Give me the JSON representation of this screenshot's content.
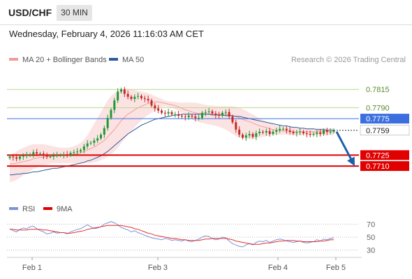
{
  "header": {
    "symbol": "USD/CHF",
    "timeframe": "30 MIN",
    "datetime": "Wednesday, February 4, 2026 11:16:03 AM CET"
  },
  "legend": {
    "ma20": "MA 20 + Bollinger Bands",
    "ma50": "MA 50",
    "credit": "Research © 2026 Trading Central",
    "rsi": "RSI",
    "rsi_ma": "9MA"
  },
  "colors": {
    "ma20_band": "#f7a8a8",
    "ma50": "#2d5c9e",
    "resistance": "#b9d98e",
    "pivot": "#3b6fe0",
    "support": "#e00000",
    "arrow": "#1f5fa8",
    "rsi": "#7b93d6",
    "rsi_ma": "#e03030"
  },
  "chart_data": [
    {
      "type": "line",
      "title": "USD/CHF 30 MIN",
      "x_ticks": [
        "Feb 1",
        "Feb 3",
        "Feb 4",
        "Feb 5"
      ],
      "price_levels": [
        {
          "value": 0.7815,
          "label": "0.7815",
          "kind": "resistance"
        },
        {
          "value": 0.779,
          "label": "0.7790",
          "kind": "resistance"
        },
        {
          "value": 0.7775,
          "label": "0.7775",
          "kind": "pivot"
        },
        {
          "value": 0.7759,
          "label": "0.7759",
          "kind": "last_price"
        },
        {
          "value": 0.7725,
          "label": "0.7725",
          "kind": "support"
        },
        {
          "value": 0.771,
          "label": "0.7710",
          "kind": "support"
        }
      ],
      "ylim": [
        0.7668,
        0.7842
      ],
      "scenario_arrow": {
        "from": 0.7759,
        "to": 0.771,
        "direction": "down"
      },
      "series": [
        {
          "name": "USD/CHF",
          "values": [
            0.7723,
            0.7722,
            0.772,
            0.7723,
            0.7724,
            0.7725,
            0.7726,
            0.7729,
            0.7727,
            0.7727,
            0.7724,
            0.7723,
            0.7723,
            0.7725,
            0.7725,
            0.7725,
            0.7726,
            0.7725,
            0.7728,
            0.7729,
            0.773,
            0.7732,
            0.7737,
            0.7741,
            0.7742,
            0.7745,
            0.7748,
            0.7753,
            0.7762,
            0.7776,
            0.7787,
            0.78,
            0.7812,
            0.7815,
            0.7809,
            0.7805,
            0.7802,
            0.7805,
            0.7806,
            0.7803,
            0.7802,
            0.78,
            0.7793,
            0.7789,
            0.7786,
            0.7783,
            0.7782,
            0.7784,
            0.7781,
            0.7781,
            0.7779,
            0.7778,
            0.7777,
            0.7779,
            0.7778,
            0.7776,
            0.7776,
            0.7783,
            0.7784,
            0.7785,
            0.7782,
            0.778,
            0.7779,
            0.7783,
            0.7784,
            0.7778,
            0.777,
            0.776,
            0.7753,
            0.7749,
            0.7752,
            0.7754,
            0.775,
            0.7755,
            0.7757,
            0.7756,
            0.7758,
            0.7754,
            0.7757,
            0.7759,
            0.7761,
            0.7761,
            0.7759,
            0.7757,
            0.7755,
            0.7756,
            0.7757,
            0.7755,
            0.7754,
            0.7753,
            0.7754,
            0.7756,
            0.7754,
            0.7759,
            0.7757,
            0.7757,
            0.7759
          ]
        },
        {
          "name": "MA 20",
          "values": [
            0.7713,
            0.7713,
            0.7714,
            0.7715,
            0.7716,
            0.7717,
            0.7718,
            0.772,
            0.7721,
            0.7722,
            0.7722,
            0.7723,
            0.7723,
            0.7724,
            0.7724,
            0.7724,
            0.7725,
            0.7725,
            0.7726,
            0.7726,
            0.7727,
            0.7728,
            0.773,
            0.7732,
            0.7734,
            0.7736,
            0.7739,
            0.7742,
            0.7745,
            0.775,
            0.7755,
            0.776,
            0.7766,
            0.7772,
            0.7777,
            0.7781,
            0.7784,
            0.7787,
            0.779,
            0.7792,
            0.7794,
            0.7796,
            0.7797,
            0.7798,
            0.7798,
            0.7797,
            0.7796,
            0.7795,
            0.7794,
            0.7793,
            0.7791,
            0.7789,
            0.7787,
            0.7786,
            0.7784,
            0.7783,
            0.7782,
            0.7782,
            0.7782,
            0.7781,
            0.7781,
            0.7781,
            0.7781,
            0.7781,
            0.7781,
            0.778,
            0.7779,
            0.7778,
            0.7776,
            0.7774,
            0.7772,
            0.7771,
            0.7769,
            0.7767,
            0.7765,
            0.7764,
            0.7763,
            0.7761,
            0.776,
            0.7759,
            0.7759,
            0.7758,
            0.7758,
            0.7757,
            0.7757,
            0.7757,
            0.7757,
            0.7757,
            0.7757,
            0.7757,
            0.7757,
            0.7757,
            0.7757,
            0.7757,
            0.7757,
            0.7757,
            0.7757
          ]
        },
        {
          "name": "MA 50",
          "values": [
            0.7698,
            0.7698,
            0.7699,
            0.7699,
            0.77,
            0.77,
            0.7701,
            0.7702,
            0.7702,
            0.7703,
            0.7704,
            0.7705,
            0.7706,
            0.7707,
            0.7707,
            0.7708,
            0.7709,
            0.771,
            0.7711,
            0.7712,
            0.7713,
            0.7714,
            0.7715,
            0.7717,
            0.7718,
            0.772,
            0.7722,
            0.7724,
            0.7727,
            0.773,
            0.7734,
            0.7738,
            0.7742,
            0.7746,
            0.775,
            0.7754,
            0.7757,
            0.776,
            0.7763,
            0.7766,
            0.7768,
            0.777,
            0.7772,
            0.7774,
            0.7775,
            0.7776,
            0.7777,
            0.7778,
            0.7779,
            0.778,
            0.778,
            0.7781,
            0.7781,
            0.7781,
            0.7781,
            0.7781,
            0.7781,
            0.7781,
            0.7781,
            0.7781,
            0.778,
            0.778,
            0.778,
            0.778,
            0.7779,
            0.7779,
            0.7779,
            0.7778,
            0.7778,
            0.7777,
            0.7776,
            0.7775,
            0.7774,
            0.7773,
            0.7772,
            0.7771,
            0.777,
            0.7769,
            0.7768,
            0.7767,
            0.7766,
            0.7765,
            0.7765,
            0.7764,
            0.7763,
            0.7763,
            0.7762,
            0.7762,
            0.7761,
            0.7761,
            0.7761,
            0.776,
            0.776,
            0.776,
            0.7759,
            0.7759,
            0.7759
          ]
        },
        {
          "name": "Upper Band",
          "values": [
            0.7723,
            0.7727,
            0.773,
            0.7733,
            0.7735,
            0.7737,
            0.7739,
            0.774,
            0.774,
            0.774,
            0.774,
            0.7739,
            0.7738,
            0.7737,
            0.7736,
            0.7735,
            0.7735,
            0.7735,
            0.7736,
            0.7737,
            0.7739,
            0.7742,
            0.7746,
            0.7752,
            0.776,
            0.7768,
            0.7776,
            0.7784,
            0.7792,
            0.78,
            0.7806,
            0.781,
            0.7813,
            0.7815,
            0.7816,
            0.7816,
            0.7815,
            0.7814,
            0.7813,
            0.7812,
            0.7811,
            0.781,
            0.7808,
            0.7806,
            0.7804,
            0.7802,
            0.78,
            0.7799,
            0.7798,
            0.7798,
            0.7797,
            0.7797,
            0.7797,
            0.7797,
            0.7797,
            0.7797,
            0.7796,
            0.7795,
            0.7794,
            0.7793,
            0.7793,
            0.7792,
            0.7792,
            0.7792,
            0.7792,
            0.7792,
            0.7792,
            0.7791,
            0.779,
            0.7788,
            0.7786,
            0.7783,
            0.7781,
            0.7778,
            0.7775,
            0.7773,
            0.7771,
            0.7769,
            0.7767,
            0.7766,
            0.7765,
            0.7764,
            0.7763,
            0.7763,
            0.7763,
            0.7762,
            0.7762,
            0.7762,
            0.7762,
            0.7762,
            0.7762,
            0.7762,
            0.7762,
            0.7762,
            0.7762,
            0.7762,
            0.7762
          ]
        },
        {
          "name": "Lower Band",
          "values": [
            0.7688,
            0.7689,
            0.7691,
            0.7694,
            0.7697,
            0.77,
            0.7703,
            0.7706,
            0.7708,
            0.771,
            0.7711,
            0.7712,
            0.7713,
            0.7714,
            0.7714,
            0.7714,
            0.7714,
            0.7714,
            0.7714,
            0.7714,
            0.7714,
            0.7714,
            0.7714,
            0.7714,
            0.7714,
            0.7715,
            0.7716,
            0.7718,
            0.772,
            0.7723,
            0.7726,
            0.773,
            0.7735,
            0.7741,
            0.7747,
            0.7753,
            0.7758,
            0.7763,
            0.7768,
            0.7773,
            0.7777,
            0.778,
            0.7783,
            0.7786,
            0.7789,
            0.7791,
            0.7792,
            0.7791,
            0.779,
            0.7788,
            0.7786,
            0.7783,
            0.778,
            0.7777,
            0.7774,
            0.7772,
            0.777,
            0.7769,
            0.7768,
            0.7767,
            0.7766,
            0.7765,
            0.7764,
            0.7762,
            0.776,
            0.7757,
            0.7754,
            0.7751,
            0.7749,
            0.7748,
            0.7747,
            0.7747,
            0.7747,
            0.7748,
            0.7749,
            0.775,
            0.7751,
            0.7752,
            0.7753,
            0.7753,
            0.7753,
            0.7753,
            0.7753,
            0.7752,
            0.7752,
            0.7752,
            0.7752,
            0.7752,
            0.7752,
            0.7752,
            0.7752,
            0.7752,
            0.7752,
            0.7752,
            0.7752,
            0.7752,
            0.7752
          ]
        }
      ]
    },
    {
      "type": "line",
      "title": "RSI",
      "y_ticks": [
        70,
        50,
        30
      ],
      "ylim": [
        20,
        80
      ],
      "series": [
        {
          "name": "RSI",
          "values": [
            63,
            60,
            58,
            62,
            64,
            63,
            66,
            67,
            63,
            60,
            58,
            55,
            56,
            58,
            56,
            57,
            57,
            55,
            58,
            60,
            62,
            63,
            66,
            69,
            66,
            63,
            64,
            66,
            70,
            72,
            74,
            72,
            69,
            65,
            63,
            61,
            58,
            60,
            57,
            55,
            53,
            51,
            49,
            48,
            47,
            46,
            48,
            47,
            45,
            46,
            45,
            44,
            46,
            44,
            43,
            45,
            47,
            50,
            52,
            51,
            48,
            46,
            47,
            50,
            49,
            44,
            40,
            38,
            36,
            35,
            38,
            40,
            38,
            42,
            44,
            43,
            45,
            42,
            44,
            46,
            47,
            46,
            44,
            43,
            42,
            43,
            44,
            42,
            41,
            42,
            43,
            46,
            44,
            47,
            46,
            48,
            49
          ]
        },
        {
          "name": "9MA",
          "values": [
            62,
            62,
            61,
            61,
            61,
            61,
            62,
            62,
            62,
            62,
            61,
            61,
            60,
            59,
            58,
            57,
            57,
            56,
            56,
            57,
            58,
            59,
            60,
            62,
            63,
            64,
            65,
            66,
            67,
            68,
            68,
            68,
            68,
            68,
            67,
            66,
            65,
            63,
            62,
            60,
            58,
            56,
            55,
            53,
            52,
            51,
            50,
            49,
            48,
            48,
            47,
            46,
            46,
            45,
            45,
            45,
            45,
            46,
            47,
            47,
            48,
            48,
            48,
            48,
            48,
            47,
            46,
            44,
            43,
            42,
            41,
            40,
            39,
            39,
            39,
            40,
            41,
            41,
            42,
            43,
            44,
            44,
            45,
            45,
            45,
            44,
            44,
            43,
            43,
            43,
            43,
            43,
            44,
            44,
            45,
            46,
            46
          ]
        }
      ]
    }
  ]
}
